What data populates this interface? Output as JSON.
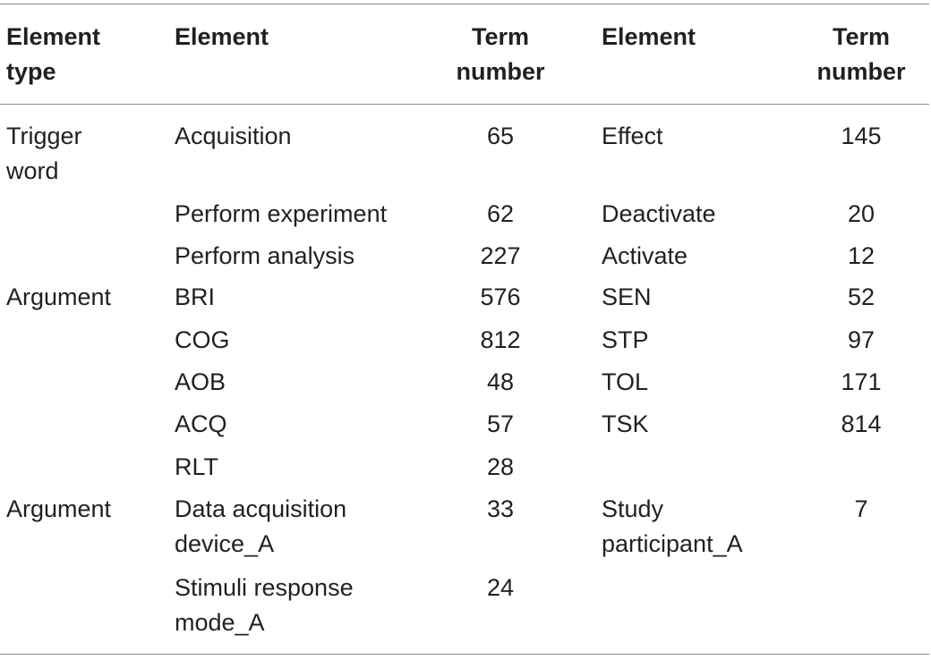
{
  "headers": {
    "col1": "Element\ntype",
    "col2": "Element",
    "col3": "Term\nnumber",
    "col4": "Element",
    "col5": "Term\nnumber"
  },
  "rows": [
    {
      "type": "Trigger\nword",
      "el1": "Acquisition",
      "n1": "65",
      "el2": "Effect",
      "n2": "145"
    },
    {
      "type": "",
      "el1": "Perform experiment",
      "n1": "62",
      "el2": "Deactivate",
      "n2": "20"
    },
    {
      "type": "",
      "el1": "Perform analysis",
      "n1": "227",
      "el2": "Activate",
      "n2": "12"
    },
    {
      "type": "Argument",
      "el1": "BRI",
      "n1": "576",
      "el2": "SEN",
      "n2": "52"
    },
    {
      "type": "",
      "el1": "COG",
      "n1": "812",
      "el2": "STP",
      "n2": "97"
    },
    {
      "type": "",
      "el1": "AOB",
      "n1": "48",
      "el2": "TOL",
      "n2": "171"
    },
    {
      "type": "",
      "el1": "ACQ",
      "n1": "57",
      "el2": "TSK",
      "n2": "814"
    },
    {
      "type": "",
      "el1": "RLT",
      "n1": "28",
      "el2": "",
      "n2": ""
    },
    {
      "type": "Argument",
      "el1": "Data acquisition\ndevice_A",
      "n1": "33",
      "el2": "Study\nparticipant_A",
      "n2": "7"
    },
    {
      "type": "",
      "el1": "Stimuli response\nmode_A",
      "n1": "24",
      "el2": "",
      "n2": ""
    }
  ]
}
